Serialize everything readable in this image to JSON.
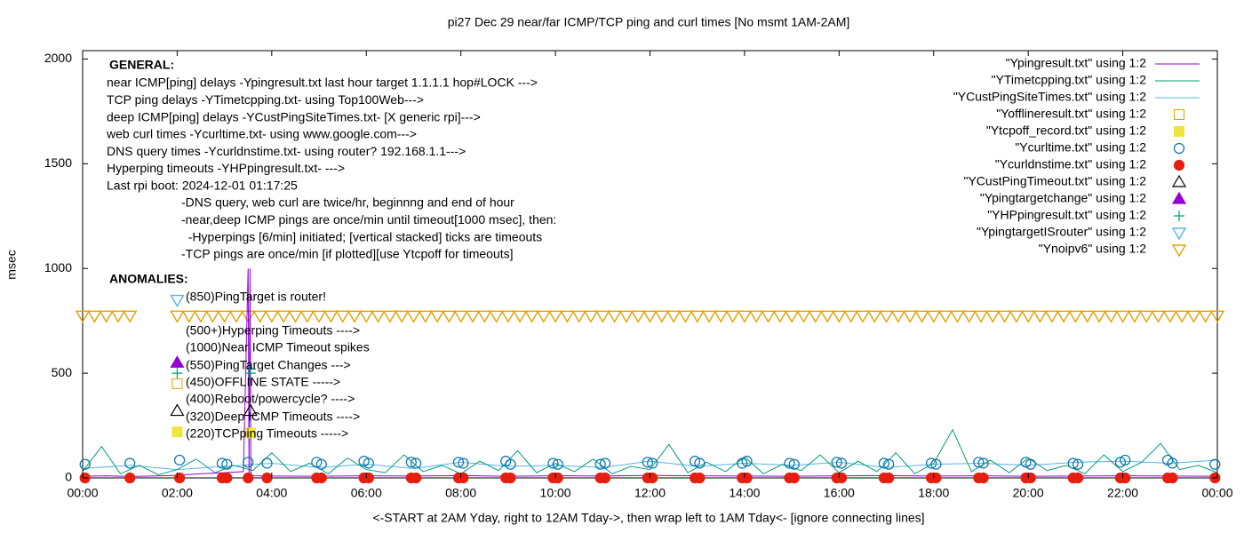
{
  "chart_data": {
    "type": "line",
    "title": "pi27 Dec 29  near/far ICMP/TCP ping and curl times [No msmt 1AM-2AM]",
    "xlabel": "<-START at 2AM Yday, right to 12AM Tday->, then wrap left to 1AM Tday<- [ignore connecting lines]",
    "ylabel": "msec",
    "xlim": [
      0,
      24
    ],
    "ylim": [
      0,
      2040
    ],
    "xticks": [
      {
        "value": 0,
        "label": "00:00"
      },
      {
        "value": 2,
        "label": "02:00"
      },
      {
        "value": 4,
        "label": "04:00"
      },
      {
        "value": 6,
        "label": "06:00"
      },
      {
        "value": 8,
        "label": "08:00"
      },
      {
        "value": 10,
        "label": "10:00"
      },
      {
        "value": 12,
        "label": "12:00"
      },
      {
        "value": 14,
        "label": "14:00"
      },
      {
        "value": 16,
        "label": "16:00"
      },
      {
        "value": 18,
        "label": "18:00"
      },
      {
        "value": 20,
        "label": "20:00"
      },
      {
        "value": 22,
        "label": "22:00"
      },
      {
        "value": 24,
        "label": "00:00"
      }
    ],
    "yticks": [
      0,
      500,
      1000,
      1500,
      2000
    ],
    "legend_position": "top-right",
    "general_heading": "GENERAL:",
    "general_lines": [
      "near ICMP[ping] delays -Ypingresult.txt last hour target 1.1.1.1 hop#LOCK --->",
      "TCP ping delays -YTimetcpping.txt- using Top100Web--->",
      "deep ICMP[ping] delays -YCustPingSiteTimes.txt- [X generic rpi]--->",
      "web curl times -Ycurltime.txt- using www.google.com--->",
      "DNS query times -Ycurldnstime.txt- using router? 192.168.1.1--->",
      "Hyperping timeouts -YHPpingresult.txt- --->",
      "Last rpi boot: 2024-12-01 01:17:25"
    ],
    "notes": [
      "-DNS query, web curl are twice/hr, beginnng and end of hour",
      "-near,deep ICMP pings are once/min until timeout[1000 msec], then:",
      "  -Hyperpings [6/min] initiated; [vertical stacked] ticks are timeouts",
      "-TCP pings are once/min [if plotted][use Ytcpoff for timeouts]"
    ],
    "anomalies_heading": "ANOMALIES:",
    "anomalies": [
      "(850)PingTarget is router!",
      "(500+)Hyperping Timeouts ---->",
      "(1000)Near ICMP Timeout spikes",
      "(550)PingTarget Changes --->",
      "(450)OFFLINE STATE ----->",
      "(400)Reboot/powercycle? ---->",
      "(320)Deep ICMP Timeouts ---->",
      "(220)TCPping Timeouts ----->"
    ],
    "series": [
      {
        "name": "\"Ypingresult.txt\" using 1:2",
        "color": "#9400d3",
        "style": "line",
        "x": [
          0,
          0.5,
          1,
          1.5,
          2,
          2.5,
          3,
          3.4,
          3.5,
          3.52,
          3.54,
          3.56,
          3.6,
          4,
          5,
          6,
          7,
          8,
          9,
          10,
          11,
          12,
          13,
          14,
          15,
          16,
          17,
          18,
          19,
          20,
          21,
          22,
          23,
          24
        ],
        "values": [
          8,
          10,
          7,
          9,
          12,
          20,
          25,
          30,
          1000,
          20,
          1000,
          15,
          10,
          9,
          8,
          10,
          9,
          11,
          8,
          10,
          9,
          12,
          10,
          9,
          8,
          10,
          11,
          9,
          10,
          8,
          9,
          10,
          9,
          8
        ]
      },
      {
        "name": "\"YTimetcpping.txt\" using 1:2",
        "color": "#009e73",
        "style": "line",
        "x": [
          0,
          0.4,
          0.8,
          1.2,
          1.6,
          2,
          2.4,
          2.8,
          3.2,
          3.6,
          4,
          4.4,
          4.8,
          5.2,
          5.6,
          6,
          6.4,
          6.8,
          7.2,
          7.6,
          8,
          8.4,
          8.8,
          9.2,
          9.6,
          10,
          10.4,
          10.8,
          11.2,
          11.6,
          12,
          12.4,
          12.8,
          13.2,
          13.6,
          14,
          14.4,
          14.8,
          15.2,
          15.6,
          16,
          16.4,
          16.8,
          17.2,
          17.6,
          18,
          18.4,
          18.8,
          19.2,
          19.6,
          20,
          20.4,
          20.8,
          21.2,
          21.6,
          22,
          22.4,
          22.8,
          23.2,
          23.6,
          24
        ],
        "values": [
          30,
          150,
          20,
          60,
          15,
          40,
          90,
          25,
          60,
          35,
          120,
          30,
          70,
          20,
          95,
          40,
          25,
          110,
          30,
          60,
          20,
          80,
          35,
          130,
          25,
          70,
          30,
          90,
          20,
          55,
          40,
          160,
          25,
          75,
          30,
          100,
          20,
          65,
          35,
          110,
          25,
          80,
          30,
          120,
          20,
          70,
          230,
          30,
          85,
          25,
          95,
          35,
          60,
          20,
          110,
          30,
          75,
          165,
          40,
          60,
          25
        ]
      },
      {
        "name": "\"YCustPingSiteTimes.txt\" using 1:2",
        "color": "#56b4e9",
        "style": "line",
        "x": [
          0,
          1,
          2,
          3,
          4,
          5,
          6,
          7,
          8,
          9,
          10,
          11,
          12,
          13,
          14,
          15,
          16,
          17,
          18,
          19,
          20,
          21,
          22,
          23,
          24
        ],
        "values": [
          45,
          60,
          40,
          55,
          70,
          50,
          65,
          45,
          75,
          55,
          60,
          50,
          80,
          55,
          70,
          60,
          75,
          50,
          65,
          70,
          60,
          75,
          80,
          70,
          85
        ]
      },
      {
        "name": "\"Yofflineresult.txt\" using 1:2",
        "color": "#e69f00",
        "style": "points",
        "marker": "square-open",
        "x": [
          2.0
        ],
        "values": [
          450
        ]
      },
      {
        "name": "\"Ytcpoff_record.txt\" using 1:2",
        "color": "#f0e442",
        "style": "points",
        "marker": "square-filled",
        "x": [
          2.0,
          3.55
        ],
        "values": [
          220,
          215
        ]
      },
      {
        "name": "\"Ycurltime.txt\" using 1:2",
        "color": "#0072b2",
        "style": "points",
        "marker": "circle-open",
        "x": [
          0.05,
          1.0,
          2.05,
          2.95,
          3.05,
          3.5,
          3.9,
          4.95,
          5.05,
          5.95,
          6.05,
          6.95,
          7.05,
          7.95,
          8.05,
          8.95,
          9.05,
          9.95,
          10.05,
          10.95,
          11.05,
          11.95,
          12.05,
          12.95,
          13.05,
          13.95,
          14.05,
          14.95,
          15.05,
          15.95,
          16.05,
          16.95,
          17.05,
          17.95,
          18.05,
          18.95,
          19.05,
          19.95,
          20.05,
          20.95,
          21.05,
          21.95,
          22.05,
          22.95,
          23.05,
          23.95
        ],
        "values": [
          65,
          70,
          85,
          70,
          65,
          75,
          70,
          75,
          65,
          80,
          70,
          75,
          70,
          75,
          70,
          80,
          65,
          70,
          65,
          65,
          70,
          75,
          70,
          80,
          70,
          70,
          80,
          70,
          65,
          75,
          70,
          70,
          65,
          70,
          65,
          75,
          70,
          75,
          65,
          70,
          65,
          75,
          85,
          85,
          70,
          65
        ]
      },
      {
        "name": "\"Ycurldnstime.txt\" using 1:2",
        "color": "#e51e10",
        "style": "points",
        "marker": "circle-filled",
        "x": [
          0.05,
          1.0,
          2.05,
          2.95,
          3.05,
          3.5,
          3.9,
          4.95,
          5.05,
          5.95,
          6.05,
          6.95,
          7.05,
          7.95,
          8.05,
          8.95,
          9.05,
          9.95,
          10.05,
          10.95,
          11.05,
          11.95,
          12.05,
          12.95,
          13.05,
          13.95,
          14.05,
          14.95,
          15.05,
          15.95,
          16.05,
          16.95,
          17.05,
          17.95,
          18.05,
          18.95,
          19.05,
          19.95,
          20.05,
          20.95,
          21.05,
          21.95,
          22.05,
          22.95,
          23.05,
          23.95
        ],
        "values": [
          0,
          0,
          0,
          0,
          0,
          0,
          0,
          0,
          0,
          0,
          0,
          0,
          0,
          0,
          0,
          0,
          0,
          0,
          0,
          0,
          0,
          0,
          0,
          0,
          0,
          0,
          0,
          0,
          0,
          0,
          0,
          0,
          0,
          0,
          0,
          0,
          0,
          0,
          0,
          0,
          0,
          0,
          0,
          0,
          0,
          0
        ]
      },
      {
        "name": "\"YCustPingTimeout.txt\" using 1:2",
        "color": "#000000",
        "style": "points",
        "marker": "triangle-open",
        "x": [
          2.0,
          3.55
        ],
        "values": [
          320,
          320
        ]
      },
      {
        "name": "\"Ypingtargetchange\" using 1:2",
        "color": "#9400d3",
        "style": "points",
        "marker": "triangle-filled",
        "x": [
          2.0
        ],
        "values": [
          550
        ]
      },
      {
        "name": "\"YHPpingresult.txt\" using 1:2",
        "color": "#009e73",
        "style": "points",
        "marker": "plus",
        "x": [
          2.0,
          3.55,
          3.55
        ],
        "values": [
          500,
          520,
          500
        ]
      },
      {
        "name": "\"YpingtargetISrouter\" using 1:2",
        "color": "#56b4e9",
        "style": "points",
        "marker": "triangle-down-open",
        "x": [
          2.0
        ],
        "values": [
          850
        ]
      },
      {
        "name": "\"Ynoipv6\" using 1:2",
        "color": "#e69f00",
        "style": "points",
        "marker": "triangle-down-open",
        "x": [
          0,
          0.25,
          0.5,
          0.75,
          1,
          2,
          2.25,
          2.5,
          2.75,
          3,
          3.25,
          3.5,
          3.75,
          4,
          4.25,
          4.5,
          4.75,
          5,
          5.25,
          5.5,
          5.75,
          6,
          6.25,
          6.5,
          6.75,
          7,
          7.25,
          7.5,
          7.75,
          8,
          8.25,
          8.5,
          8.75,
          9,
          9.25,
          9.5,
          9.75,
          10,
          10.25,
          10.5,
          10.75,
          11,
          11.25,
          11.5,
          11.75,
          12,
          12.25,
          12.5,
          12.75,
          13,
          13.25,
          13.5,
          13.75,
          14,
          14.25,
          14.5,
          14.75,
          15,
          15.25,
          15.5,
          15.75,
          16,
          16.25,
          16.5,
          16.75,
          17,
          17.25,
          17.5,
          17.75,
          18,
          18.25,
          18.5,
          18.75,
          19,
          19.25,
          19.5,
          19.75,
          20,
          20.25,
          20.5,
          20.75,
          21,
          21.25,
          21.5,
          21.75,
          22,
          22.25,
          22.5,
          22.75,
          23,
          23.25,
          23.5,
          23.75,
          24
        ],
        "values": [
          775,
          775,
          775,
          775,
          775,
          775,
          775,
          775,
          775,
          775,
          775,
          775,
          775,
          775,
          775,
          775,
          775,
          775,
          775,
          775,
          775,
          775,
          775,
          775,
          775,
          775,
          775,
          775,
          775,
          775,
          775,
          775,
          775,
          775,
          775,
          775,
          775,
          775,
          775,
          775,
          775,
          775,
          775,
          775,
          775,
          775,
          775,
          775,
          775,
          775,
          775,
          775,
          775,
          775,
          775,
          775,
          775,
          775,
          775,
          775,
          775,
          775,
          775,
          775,
          775,
          775,
          775,
          775,
          775,
          775,
          775,
          775,
          775,
          775,
          775,
          775,
          775,
          775,
          775,
          775,
          775,
          775,
          775,
          775,
          775,
          775,
          775,
          775,
          775,
          775,
          775,
          775,
          775,
          775
        ]
      }
    ]
  }
}
